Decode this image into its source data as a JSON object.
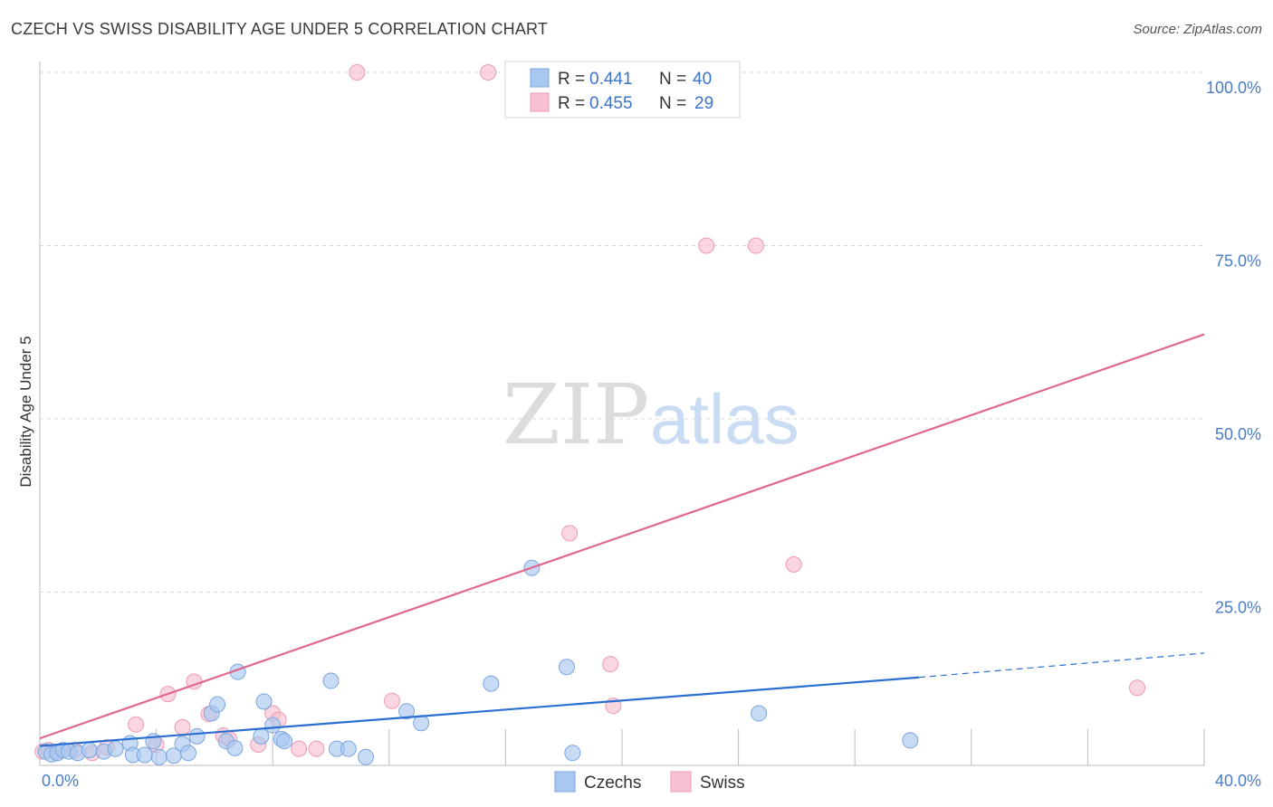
{
  "title": "CZECH VS SWISS DISABILITY AGE UNDER 5 CORRELATION CHART",
  "source": "Source: ZipAtlas.com",
  "watermark": {
    "zip": "ZIP",
    "atlas": "atlas"
  },
  "colors": {
    "czech_fill": "#a9c8f0",
    "czech_stroke": "#7aa6e0",
    "czech_line": "#2a6fd0",
    "swiss_fill": "#f8c0d0",
    "swiss_stroke": "#ee9ab4",
    "swiss_line": "#e06890",
    "tick": "#4a7cc7",
    "grid": "#d8d8d8"
  },
  "legend": {
    "czech": {
      "r_label": "R =",
      "r_value": "0.441",
      "n_label": "N =",
      "n_value": "40"
    },
    "swiss": {
      "r_label": "R =",
      "r_value": "0.455",
      "n_label": "N =",
      "n_value": "29"
    }
  },
  "bottom_legend": {
    "czech": "Czechs",
    "swiss": "Swiss"
  },
  "chart_data": {
    "type": "scatter",
    "title": "CZECH VS SWISS DISABILITY AGE UNDER 5 CORRELATION CHART",
    "xlabel": "",
    "ylabel": "Disability Age Under 5",
    "xlim": [
      0,
      40
    ],
    "ylim": [
      0,
      100
    ],
    "x_tick_labels": [
      "0.0%",
      "40.0%"
    ],
    "y_tick_labels": [
      "100.0%",
      "75.0%",
      "50.0%",
      "25.0%"
    ],
    "y_ticks": [
      100,
      75,
      50,
      25
    ],
    "series": [
      {
        "name": "Czechs",
        "r": 0.441,
        "n": 40,
        "points": [
          [
            0.2,
            2.0
          ],
          [
            0.4,
            1.6
          ],
          [
            0.6,
            1.8
          ],
          [
            0.8,
            2.2
          ],
          [
            1.0,
            2.0
          ],
          [
            1.3,
            1.8
          ],
          [
            1.7,
            2.2
          ],
          [
            2.2,
            2.0
          ],
          [
            2.6,
            2.4
          ],
          [
            3.1,
            3.2
          ],
          [
            3.2,
            1.5
          ],
          [
            3.6,
            1.5
          ],
          [
            3.9,
            3.5
          ],
          [
            4.1,
            1.2
          ],
          [
            4.6,
            1.4
          ],
          [
            4.9,
            3.1
          ],
          [
            5.1,
            1.8
          ],
          [
            5.4,
            4.2
          ],
          [
            5.9,
            7.5
          ],
          [
            6.1,
            8.8
          ],
          [
            6.4,
            3.5
          ],
          [
            6.7,
            2.5
          ],
          [
            6.8,
            13.5
          ],
          [
            7.6,
            4.2
          ],
          [
            7.7,
            9.2
          ],
          [
            8.0,
            5.8
          ],
          [
            8.3,
            3.8
          ],
          [
            8.4,
            3.5
          ],
          [
            10.0,
            12.2
          ],
          [
            10.2,
            2.4
          ],
          [
            10.6,
            2.4
          ],
          [
            11.2,
            1.2
          ],
          [
            12.6,
            7.8
          ],
          [
            13.1,
            6.1
          ],
          [
            15.5,
            11.8
          ],
          [
            16.9,
            28.5
          ],
          [
            18.1,
            14.2
          ],
          [
            18.3,
            1.8
          ],
          [
            24.7,
            7.5
          ],
          [
            29.9,
            3.6
          ]
        ],
        "trend": {
          "x0": 0,
          "y0": 2.8,
          "x1": 30.2,
          "y1": 12.7,
          "dash_x1": 40,
          "dash_y1": 16.2
        }
      },
      {
        "name": "Swiss",
        "r": 0.455,
        "n": 29,
        "points": [
          [
            0.3,
            2.2
          ],
          [
            0.6,
            1.8
          ],
          [
            1.2,
            2.2
          ],
          [
            1.8,
            1.8
          ],
          [
            2.3,
            2.6
          ],
          [
            3.3,
            5.9
          ],
          [
            4.0,
            3.0
          ],
          [
            4.4,
            10.3
          ],
          [
            4.9,
            5.5
          ],
          [
            5.3,
            12.1
          ],
          [
            5.8,
            7.4
          ],
          [
            6.3,
            4.3
          ],
          [
            6.5,
            3.8
          ],
          [
            7.5,
            3.0
          ],
          [
            8.0,
            7.5
          ],
          [
            8.2,
            6.6
          ],
          [
            8.9,
            2.4
          ],
          [
            9.5,
            2.4
          ],
          [
            10.9,
            100.0
          ],
          [
            12.1,
            9.3
          ],
          [
            15.4,
            100.0
          ],
          [
            18.2,
            33.5
          ],
          [
            19.6,
            14.6
          ],
          [
            19.7,
            8.6
          ],
          [
            22.9,
            75.0
          ],
          [
            24.6,
            75.0
          ],
          [
            25.9,
            29.0
          ],
          [
            37.7,
            11.2
          ],
          [
            0.1,
            2.0
          ]
        ],
        "trend": {
          "x0": 0,
          "y0": 3.9,
          "x1": 40,
          "y1": 62.2
        }
      }
    ]
  }
}
